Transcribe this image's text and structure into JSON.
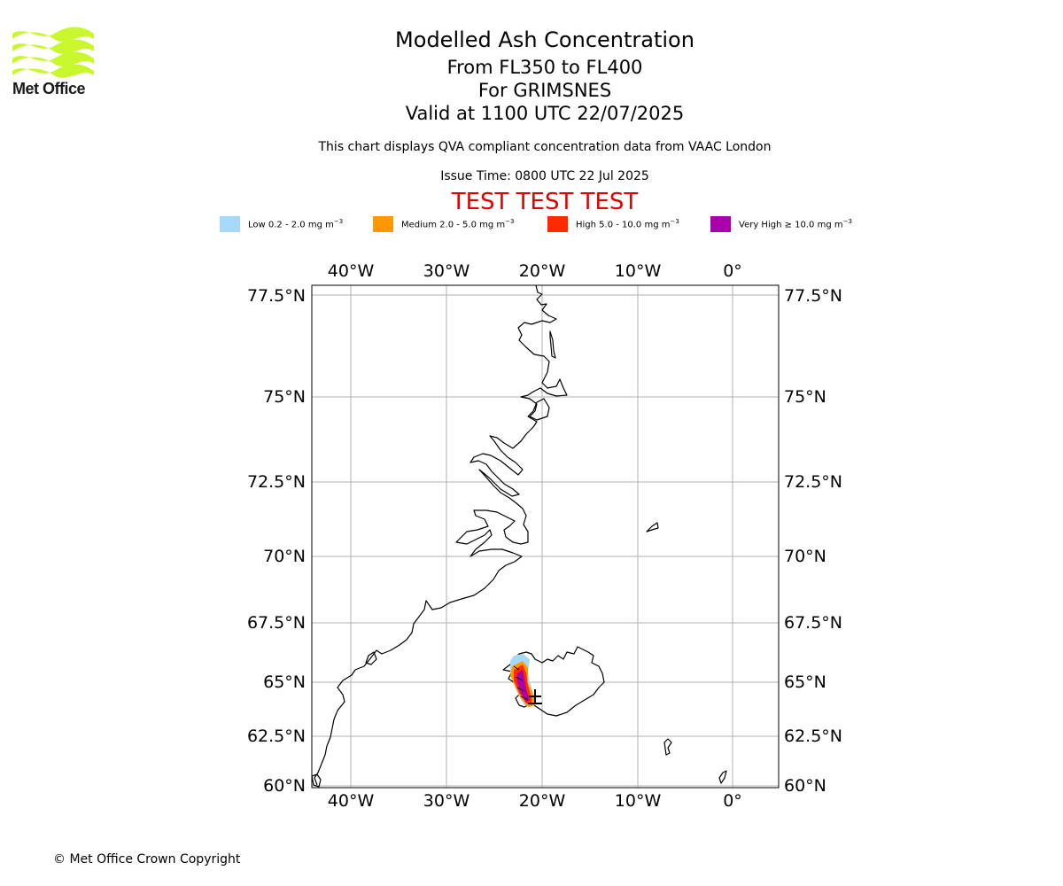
{
  "branding": {
    "logo_text": "Met Office"
  },
  "title": {
    "line1": "Modelled Ash Concentration",
    "line2": "From FL350 to FL400",
    "line3": "For GRIMSNES",
    "line4": "Valid at 1100 UTC 22/07/2025"
  },
  "subtitle": "This chart displays QVA compliant concentration data from VAAC London",
  "issue_time": "Issue Time: 0800 UTC 22 Jul 2025",
  "test_banner": "TEST TEST TEST",
  "legend": [
    {
      "label": "Low 0.2 - 2.0 mg m",
      "unit_exp": "−3",
      "color": "#a6d8fa"
    },
    {
      "label": "Medium 2.0 - 5.0 mg m",
      "unit_exp": "−3",
      "color": "#ff9900"
    },
    {
      "label": "High 5.0 - 10.0 mg m",
      "unit_exp": "−3",
      "color": "#ff2a00"
    },
    {
      "label": "Very High ≥ 10.0 mg m",
      "unit_exp": "−3",
      "color": "#aa00aa"
    }
  ],
  "map": {
    "lon_ticks": [
      "40°W",
      "30°W",
      "20°W",
      "10°W",
      "0°"
    ],
    "lat_ticks": [
      "77.5°N",
      "75°N",
      "72.5°N",
      "70°N",
      "67.5°N",
      "65°N",
      "62.5°N",
      "60°N"
    ],
    "volcano_name": "GRIMSNES"
  },
  "copyright": "© Met Office Crown Copyright"
}
